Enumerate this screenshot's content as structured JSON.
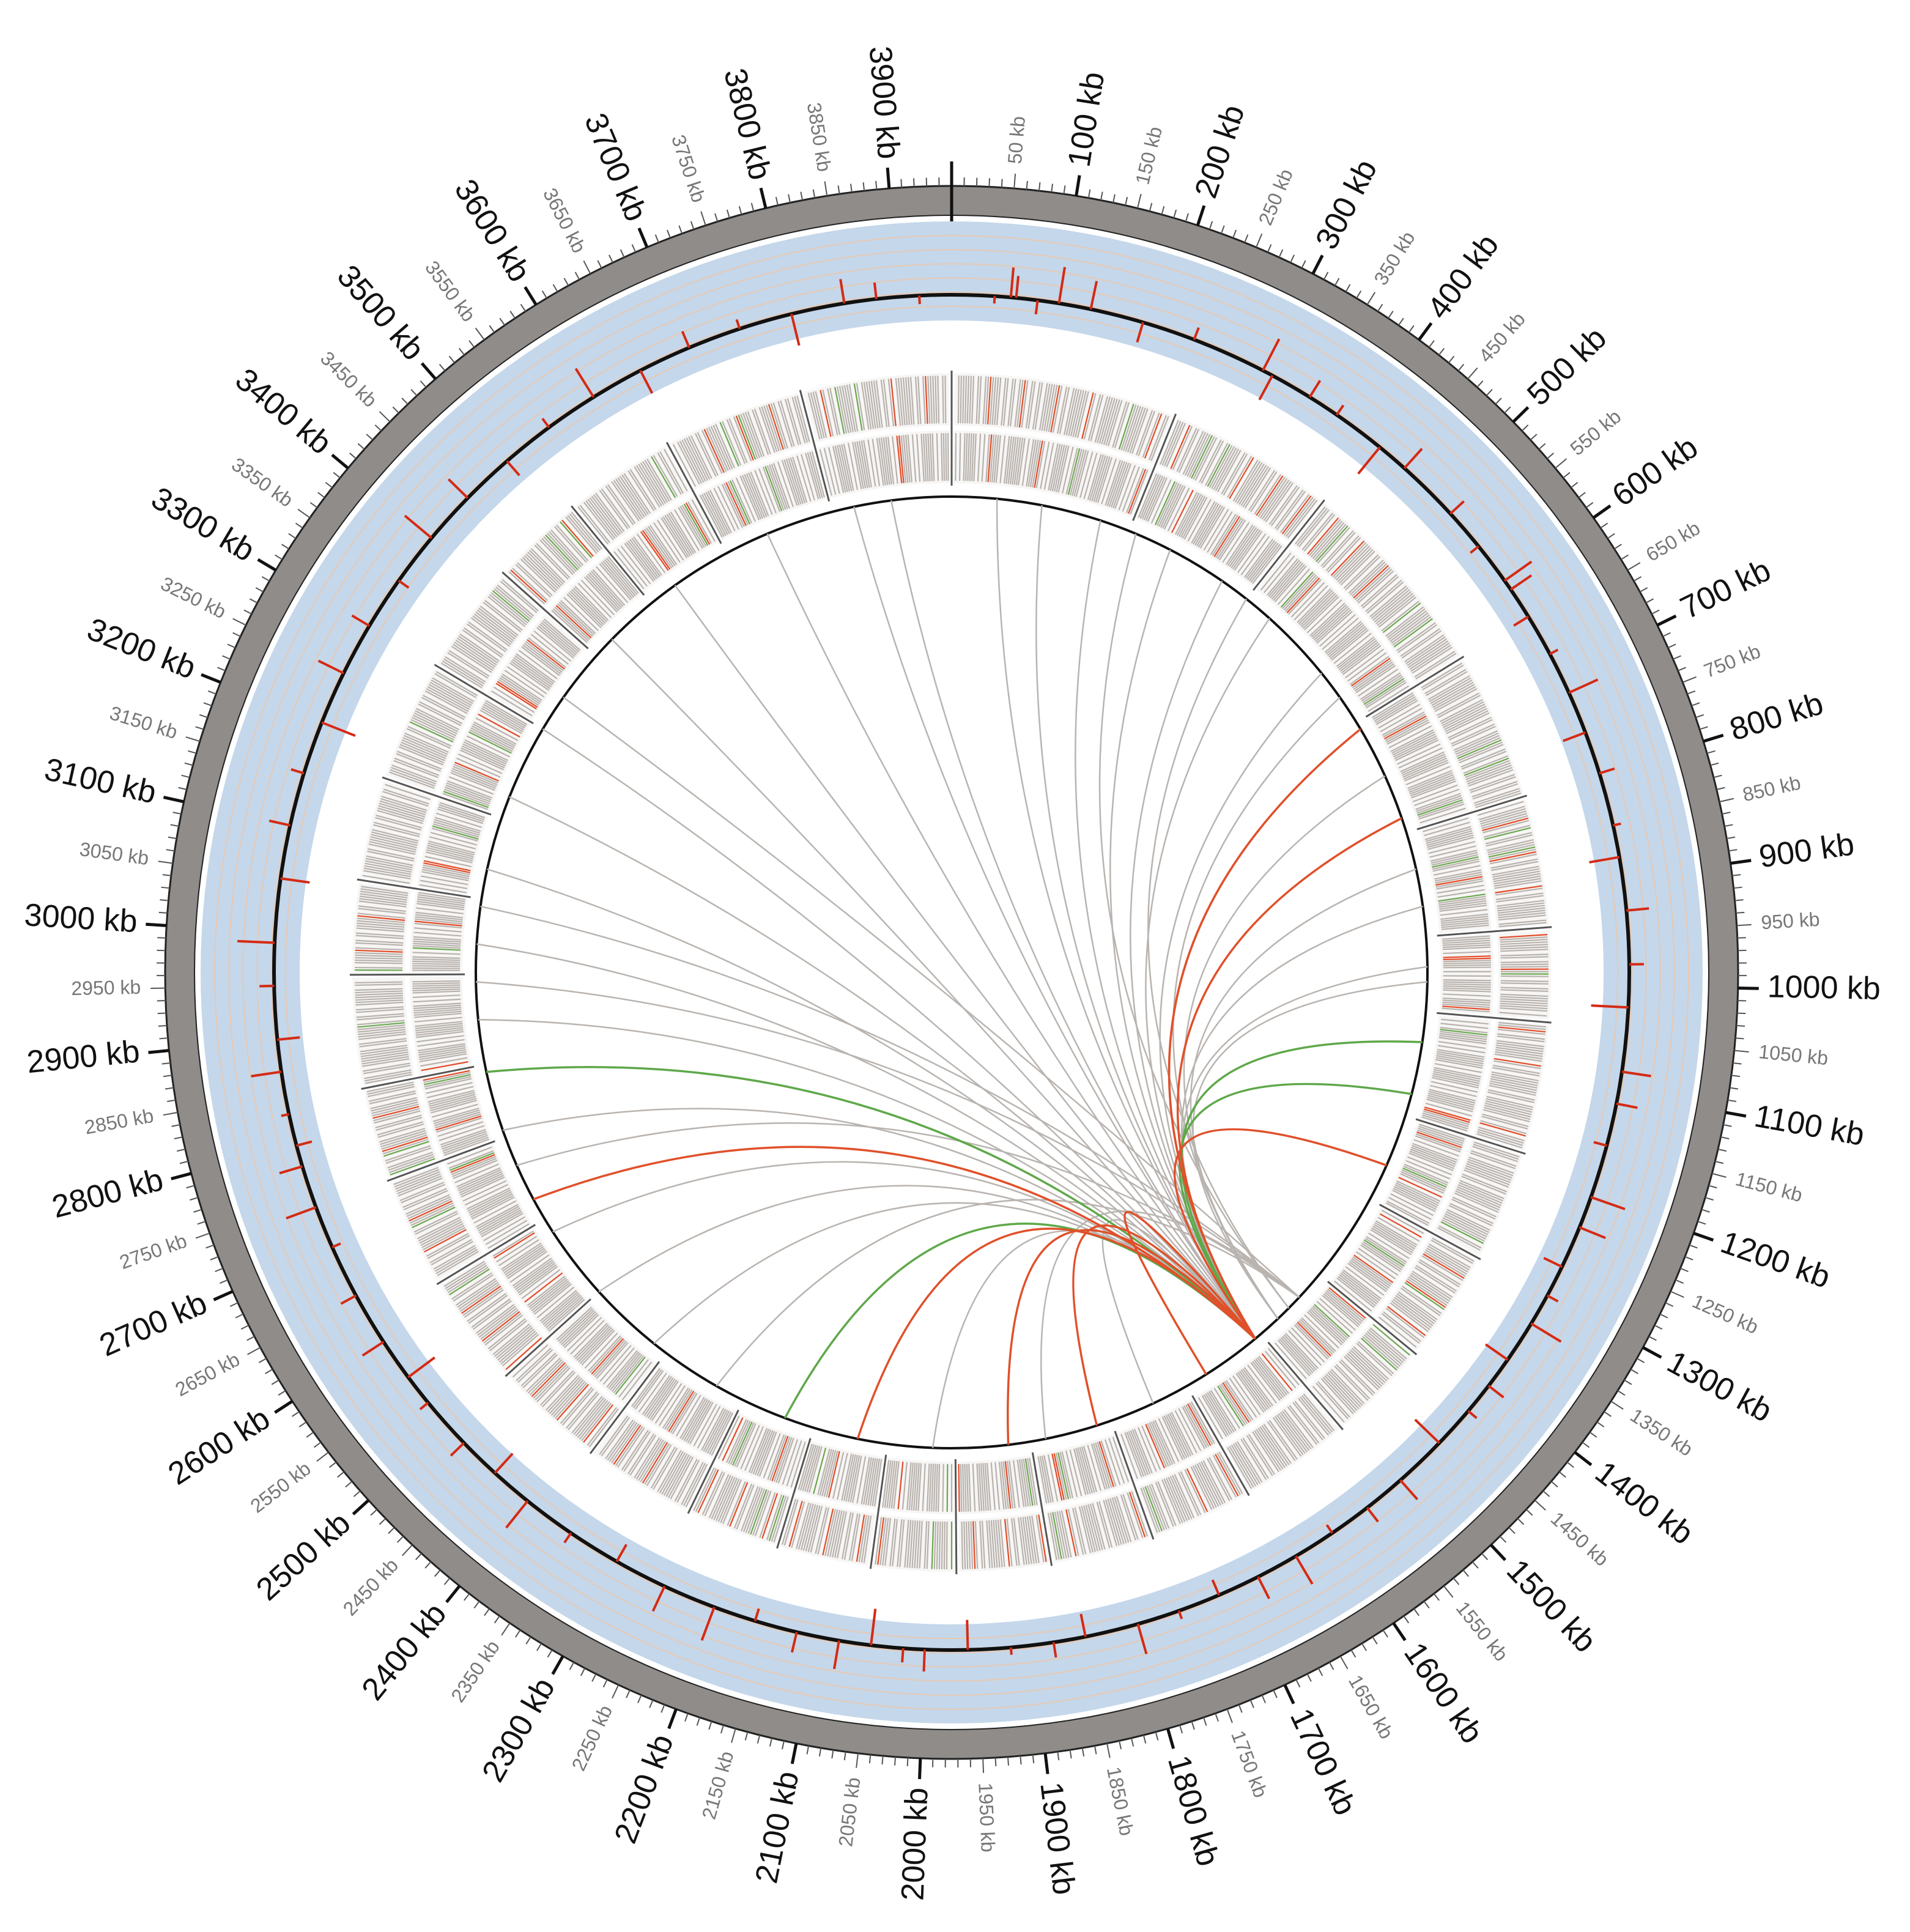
{
  "chart_data": {
    "type": "circos",
    "genome_length_kb": 3950,
    "tick_unit": "kb",
    "major_tick_labels": [
      "100 kb",
      "200 kb",
      "300 kb",
      "400 kb",
      "500 kb",
      "600 kb",
      "700 kb",
      "800 kb",
      "900 kb",
      "1000 kb",
      "1100 kb",
      "1200 kb",
      "1300 kb",
      "1400 kb",
      "1500 kb",
      "1600 kb",
      "1700 kb",
      "1800 kb",
      "1900 kb",
      "2000 kb",
      "2100 kb",
      "2200 kb",
      "2300 kb",
      "2400 kb",
      "2500 kb",
      "2600 kb",
      "2700 kb",
      "2800 kb",
      "2900 kb",
      "3000 kb",
      "3100 kb",
      "3200 kb",
      "3300 kb",
      "3400 kb",
      "3500 kb",
      "3600 kb",
      "3700 kb",
      "3800 kb",
      "3900 kb"
    ],
    "minor_tick_labels": [
      "50 kb",
      "150 kb",
      "250 kb",
      "350 kb",
      "450 kb",
      "550 kb",
      "650 kb",
      "750 kb",
      "850 kb",
      "950 kb",
      "1050 kb",
      "1150 kb",
      "1250 kb",
      "1350 kb",
      "1450 kb",
      "1550 kb",
      "1650 kb",
      "1750 kb",
      "1850 kb",
      "1950 kb",
      "2050 kb",
      "2150 kb",
      "2250 kb",
      "2350 kb",
      "2450 kb",
      "2550 kb",
      "2650 kb",
      "2750 kb",
      "2850 kb",
      "2950 kb",
      "3050 kb",
      "3150 kb",
      "3250 kb",
      "3350 kb",
      "3450 kb",
      "3550 kb",
      "3650 kb",
      "3750 kb",
      "3850 kb"
    ],
    "scatter_points_kb": [
      40,
      55,
      60,
      80,
      100,
      130,
      180,
      230,
      300,
      310,
      350,
      380,
      430,
      460,
      520,
      560,
      600,
      610,
      640,
      680,
      720,
      760,
      800,
      850,
      880,
      930,
      980,
      1020,
      1080,
      1110,
      1150,
      1200,
      1230,
      1270,
      1300,
      1330,
      1370,
      1400,
      1430,
      1470,
      1520,
      1560,
      1600,
      1640,
      1680,
      1720,
      1760,
      1800,
      1850,
      1880,
      1920,
      1960,
      2000,
      2020,
      2050,
      2080,
      2120,
      2160,
      2200,
      2250,
      2300,
      2350,
      2400,
      2440,
      2480,
      2530,
      2560,
      2600,
      2650,
      2700,
      2740,
      2780,
      2800,
      2830,
      2870,
      2900,
      2950,
      2990,
      3050,
      3100,
      3150,
      3200,
      3250,
      3300,
      3350,
      3400,
      3450,
      3500,
      3550,
      3600,
      3650,
      3700,
      3750,
      3800,
      3850,
      3880,
      3920
    ],
    "gene_segments_kb": [
      [
        0,
        240
      ],
      [
        240,
        420
      ],
      [
        420,
        640
      ],
      [
        640,
        800
      ],
      [
        800,
        940
      ],
      [
        940,
        1040
      ],
      [
        1040,
        1180
      ],
      [
        1180,
        1300
      ],
      [
        1300,
        1420
      ],
      [
        1420,
        1530
      ],
      [
        1530,
        1650
      ],
      [
        1650,
        1760
      ],
      [
        1760,
        1870
      ],
      [
        1870,
        1970
      ],
      [
        1970,
        2060
      ],
      [
        2060,
        2160
      ],
      [
        2160,
        2260
      ],
      [
        2260,
        2380
      ],
      [
        2380,
        2500
      ],
      [
        2500,
        2620
      ],
      [
        2620,
        2740
      ],
      [
        2740,
        2840
      ],
      [
        2840,
        2960
      ],
      [
        2960,
        3060
      ],
      [
        3060,
        3170
      ],
      [
        3170,
        3300
      ],
      [
        3300,
        3420
      ],
      [
        3420,
        3520
      ],
      [
        3520,
        3640
      ],
      [
        3640,
        3790
      ],
      [
        3790,
        3950
      ]
    ],
    "links": [
      {
        "from": 1540,
        "to": 3870,
        "type": "neutral"
      },
      {
        "from": 1540,
        "to": 3820,
        "type": "neutral"
      },
      {
        "from": 1540,
        "to": 3700,
        "type": "neutral"
      },
      {
        "from": 1540,
        "to": 3560,
        "type": "neutral"
      },
      {
        "from": 1540,
        "to": 3450,
        "type": "neutral"
      },
      {
        "from": 1540,
        "to": 3300,
        "type": "neutral"
      },
      {
        "from": 1540,
        "to": 3200,
        "type": "neutral"
      },
      {
        "from": 1540,
        "to": 3100,
        "type": "neutral"
      },
      {
        "from": 1540,
        "to": 3000,
        "type": "neutral"
      },
      {
        "from": 1540,
        "to": 2900,
        "type": "neutral"
      },
      {
        "from": 1540,
        "to": 2830,
        "type": "green"
      },
      {
        "from": 1540,
        "to": 2750,
        "type": "neutral"
      },
      {
        "from": 1540,
        "to": 2650,
        "type": "red"
      },
      {
        "from": 1540,
        "to": 2600,
        "type": "neutral"
      },
      {
        "from": 1540,
        "to": 2500,
        "type": "neutral"
      },
      {
        "from": 1540,
        "to": 2400,
        "type": "neutral"
      },
      {
        "from": 1540,
        "to": 2200,
        "type": "green"
      },
      {
        "from": 1540,
        "to": 2100,
        "type": "red"
      },
      {
        "from": 1540,
        "to": 2000,
        "type": "neutral"
      },
      {
        "from": 1540,
        "to": 1900,
        "type": "red"
      },
      {
        "from": 1540,
        "to": 1780,
        "type": "red"
      },
      {
        "from": 1540,
        "to": 1700,
        "type": "neutral"
      },
      {
        "from": 1540,
        "to": 1620,
        "type": "red"
      },
      {
        "from": 1540,
        "to": 1250,
        "type": "red"
      },
      {
        "from": 1540,
        "to": 1150,
        "type": "green"
      },
      {
        "from": 1540,
        "to": 1080,
        "type": "green"
      },
      {
        "from": 1540,
        "to": 980,
        "type": "neutral"
      },
      {
        "from": 1540,
        "to": 900,
        "type": "neutral"
      },
      {
        "from": 1540,
        "to": 780,
        "type": "red"
      },
      {
        "from": 1540,
        "to": 650,
        "type": "red"
      },
      {
        "from": 1540,
        "to": 560,
        "type": "neutral"
      },
      {
        "from": 1540,
        "to": 460,
        "type": "neutral"
      },
      {
        "from": 1540,
        "to": 380,
        "type": "neutral"
      },
      {
        "from": 1540,
        "to": 300,
        "type": "neutral"
      },
      {
        "from": 1540,
        "to": 200,
        "type": "neutral"
      },
      {
        "from": 1540,
        "to": 120,
        "type": "neutral"
      },
      {
        "from": 1540,
        "to": 60,
        "type": "neutral"
      },
      {
        "from": 1500,
        "to": 1000,
        "type": "neutral"
      },
      {
        "from": 1500,
        "to": 850,
        "type": "neutral"
      },
      {
        "from": 1500,
        "to": 720,
        "type": "neutral"
      },
      {
        "from": 1500,
        "to": 600,
        "type": "neutral"
      },
      {
        "from": 1480,
        "to": 420,
        "type": "neutral"
      },
      {
        "from": 1480,
        "to": 250,
        "type": "neutral"
      },
      {
        "from": 1460,
        "to": 3350,
        "type": "neutral"
      },
      {
        "from": 1460,
        "to": 3050,
        "type": "neutral"
      },
      {
        "from": 1460,
        "to": 2950,
        "type": "neutral"
      },
      {
        "from": 1460,
        "to": 2700,
        "type": "neutral"
      },
      {
        "from": 1460,
        "to": 2300,
        "type": "neutral"
      },
      {
        "from": 1460,
        "to": 1850,
        "type": "neutral"
      }
    ],
    "colors": {
      "outer_ring": "#8f8c89",
      "band": "#c5d7ea",
      "band_lines": "#e6c9b5",
      "scatter": "#d42a14",
      "gene_neutral": "#b8b2ad",
      "gene_red": "#e24a26",
      "gene_green": "#6aa84f",
      "link_neutral": "#b9b4b0",
      "link_red": "#e0502a",
      "link_green": "#5fa84a",
      "circle_line": "#111111"
    }
  }
}
